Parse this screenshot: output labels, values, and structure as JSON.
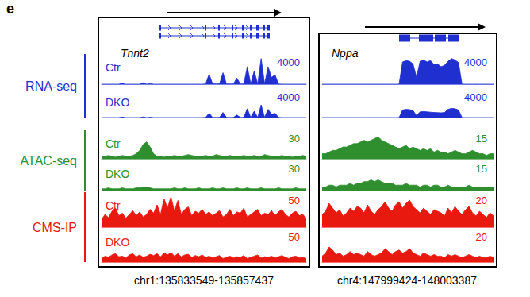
{
  "panel_label": "e",
  "assays": [
    {
      "name": "RNA-seq",
      "color": "#1f2fd0"
    },
    {
      "name": "ATAC-seq",
      "color": "#2f8f2f"
    },
    {
      "name": "CMS-IP",
      "color": "#e8190f"
    }
  ],
  "loci": [
    {
      "gene": "Tnnt2",
      "region": "chr1:135833549-135857437"
    },
    {
      "gene": "Nppa",
      "region": "chr4:147999424-148003387"
    }
  ],
  "chart_data": [
    {
      "type": "area",
      "locus": "Tnnt2",
      "assay": "RNA-seq",
      "title": "Ctr",
      "color": "#1f2fd0",
      "ylim": [
        0,
        4000
      ],
      "yticks": [
        4000
      ],
      "values": [
        0,
        0,
        0,
        0,
        0,
        0,
        150,
        0,
        0,
        0,
        0,
        0,
        200,
        0,
        100,
        0,
        0,
        0,
        0,
        0,
        0,
        0,
        0,
        0,
        0,
        0,
        0,
        0,
        0,
        0,
        30,
        1500,
        60,
        40,
        50,
        1700,
        40,
        30,
        40,
        900,
        30,
        40,
        2600,
        50,
        2000,
        40,
        3800,
        60,
        2600,
        1000,
        1400,
        30,
        0,
        0,
        0,
        0,
        0,
        0,
        0,
        0
      ]
    },
    {
      "type": "area",
      "locus": "Tnnt2",
      "assay": "RNA-seq",
      "title": "DKO",
      "color": "#1f2fd0",
      "ylim": [
        0,
        4000
      ],
      "yticks": [
        4000
      ],
      "values": [
        0,
        0,
        0,
        0,
        0,
        0,
        80,
        0,
        0,
        0,
        0,
        0,
        100,
        0,
        50,
        0,
        0,
        0,
        0,
        0,
        0,
        0,
        0,
        0,
        0,
        0,
        0,
        0,
        0,
        0,
        20,
        700,
        30,
        20,
        30,
        800,
        20,
        20,
        20,
        400,
        20,
        20,
        1400,
        30,
        1000,
        20,
        2000,
        30,
        1300,
        500,
        700,
        20,
        0,
        0,
        0,
        0,
        0,
        0,
        0,
        0
      ]
    },
    {
      "type": "area",
      "locus": "Tnnt2",
      "assay": "ATAC-seq",
      "title": "Ctr",
      "color": "#2f8f2f",
      "ylim": [
        0,
        30
      ],
      "yticks": [
        30
      ],
      "values": [
        3,
        3,
        4,
        3,
        2,
        3,
        4,
        3,
        3,
        4,
        6,
        10,
        17,
        20,
        14,
        6,
        3,
        3,
        2,
        3,
        3,
        4,
        3,
        3,
        4,
        5,
        4,
        3,
        3,
        3,
        4,
        3,
        3,
        5,
        4,
        3,
        3,
        4,
        3,
        3,
        3,
        4,
        3,
        3,
        4,
        3,
        3,
        5,
        4,
        3,
        3,
        3,
        4,
        3,
        3,
        2,
        3,
        3,
        4,
        3
      ]
    },
    {
      "type": "area",
      "locus": "Tnnt2",
      "assay": "ATAC-seq",
      "title": "DKO",
      "color": "#2f8f2f",
      "ylim": [
        0,
        30
      ],
      "yticks": [
        30
      ],
      "values": [
        2,
        2,
        3,
        2,
        2,
        2,
        3,
        2,
        2,
        2,
        3,
        3,
        4,
        4,
        3,
        2,
        2,
        2,
        2,
        2,
        2,
        3,
        2,
        2,
        3,
        2,
        2,
        2,
        3,
        2,
        2,
        2,
        3,
        2,
        2,
        3,
        2,
        2,
        2,
        3,
        2,
        2,
        3,
        2,
        2,
        2,
        3,
        2,
        2,
        2,
        2,
        3,
        2,
        2,
        2,
        2,
        3,
        2,
        2,
        2
      ]
    },
    {
      "type": "area",
      "locus": "Tnnt2",
      "assay": "CMS-IP",
      "title": "Ctr",
      "color": "#e8190f",
      "ylim": [
        0,
        50
      ],
      "yticks": [
        50
      ],
      "values": [
        12,
        20,
        15,
        25,
        30,
        18,
        22,
        14,
        20,
        26,
        18,
        24,
        16,
        20,
        28,
        22,
        35,
        20,
        45,
        30,
        48,
        25,
        42,
        20,
        28,
        32,
        18,
        25,
        22,
        28,
        20,
        24,
        18,
        22,
        26,
        16,
        20,
        28,
        18,
        24,
        22,
        30,
        16,
        20,
        24,
        28,
        18,
        22,
        20,
        26,
        18,
        24,
        28,
        20,
        16,
        22,
        25,
        18,
        20,
        14
      ]
    },
    {
      "type": "area",
      "locus": "Tnnt2",
      "assay": "CMS-IP",
      "title": "DKO",
      "color": "#e8190f",
      "ylim": [
        0,
        50
      ],
      "yticks": [
        50
      ],
      "values": [
        6,
        10,
        8,
        12,
        14,
        9,
        10,
        7,
        12,
        14,
        9,
        12,
        8,
        10,
        13,
        11,
        14,
        9,
        15,
        12,
        16,
        10,
        14,
        9,
        12,
        13,
        8,
        11,
        9,
        12,
        8,
        10,
        7,
        9,
        11,
        6,
        8,
        10,
        7,
        9,
        8,
        11,
        6,
        8,
        10,
        12,
        7,
        9,
        8,
        10,
        7,
        9,
        11,
        8,
        6,
        9,
        10,
        7,
        8,
        6
      ]
    },
    {
      "type": "area",
      "locus": "Nppa",
      "assay": "RNA-seq",
      "color": "#1f2fd0",
      "ylim": [
        0,
        4000
      ],
      "yticks": [
        4000
      ],
      "values": [
        0,
        0,
        0,
        0,
        0,
        0,
        0,
        0,
        0,
        0,
        0,
        0,
        0,
        0,
        0,
        0,
        0,
        0,
        0,
        0,
        0,
        0,
        0,
        3300,
        3500,
        3400,
        3000,
        1000,
        3400,
        3600,
        3300,
        3500,
        2900,
        3000,
        2600,
        2800,
        3400,
        3800,
        3600,
        3200,
        0,
        0,
        0,
        0,
        0,
        0,
        0,
        0,
        0,
        0
      ]
    },
    {
      "type": "area",
      "locus": "Nppa",
      "assay": "RNA-seq",
      "color": "#1f2fd0",
      "ylim": [
        0,
        4000
      ],
      "yticks": [
        4000
      ],
      "values": [
        0,
        0,
        0,
        0,
        0,
        0,
        0,
        0,
        0,
        0,
        0,
        0,
        0,
        0,
        0,
        0,
        0,
        0,
        0,
        0,
        0,
        0,
        0,
        1200,
        1300,
        1250,
        1100,
        300,
        900,
        950,
        900,
        850,
        800,
        780,
        750,
        800,
        1300,
        1450,
        1400,
        1200,
        0,
        0,
        0,
        0,
        0,
        0,
        0,
        0,
        0,
        0
      ]
    },
    {
      "type": "area",
      "locus": "Nppa",
      "assay": "ATAC-seq",
      "color": "#2f8f2f",
      "ylim": [
        0,
        15
      ],
      "yticks": [
        15
      ],
      "values": [
        3,
        3,
        4,
        5,
        5,
        6,
        7,
        7,
        8,
        9,
        9,
        10,
        11,
        10,
        11,
        12,
        13,
        11,
        10,
        9,
        8,
        7,
        6,
        7,
        8,
        6,
        7,
        6,
        5,
        6,
        5,
        6,
        4,
        5,
        4,
        4,
        3,
        4,
        5,
        4,
        3,
        3,
        4,
        5,
        4,
        3,
        3,
        2,
        3,
        3
      ]
    },
    {
      "type": "area",
      "locus": "Nppa",
      "assay": "ATAC-seq",
      "color": "#2f8f2f",
      "ylim": [
        0,
        15
      ],
      "yticks": [
        15
      ],
      "values": [
        2,
        2,
        3,
        3,
        2,
        3,
        3,
        3,
        4,
        3,
        4,
        4,
        5,
        5,
        6,
        5,
        6,
        5,
        4,
        4,
        4,
        3,
        3,
        3,
        4,
        3,
        3,
        3,
        2,
        3,
        3,
        2,
        3,
        3,
        2,
        2,
        3,
        2,
        2,
        2,
        2,
        2,
        3,
        2,
        2,
        2,
        2,
        2,
        2,
        2
      ]
    },
    {
      "type": "area",
      "locus": "Nppa",
      "assay": "CMS-IP",
      "color": "#e8190f",
      "ylim": [
        0,
        20
      ],
      "yticks": [
        20
      ],
      "values": [
        8,
        10,
        15,
        12,
        9,
        11,
        7,
        9,
        12,
        10,
        13,
        12,
        9,
        14,
        10,
        8,
        11,
        13,
        16,
        12,
        10,
        14,
        16,
        12,
        15,
        17,
        13,
        11,
        9,
        12,
        10,
        8,
        11,
        10,
        9,
        7,
        12,
        9,
        13,
        10,
        8,
        11,
        13,
        9,
        7,
        10,
        8,
        6,
        9,
        7
      ]
    },
    {
      "type": "area",
      "locus": "Nppa",
      "assay": "CMS-IP",
      "color": "#e8190f",
      "ylim": [
        0,
        20
      ],
      "yticks": [
        20
      ],
      "values": [
        4,
        6,
        10,
        8,
        5,
        6,
        4,
        5,
        7,
        5,
        6,
        5,
        4,
        7,
        5,
        4,
        5,
        6,
        9,
        7,
        5,
        7,
        8,
        6,
        7,
        9,
        6,
        5,
        4,
        6,
        5,
        4,
        5,
        4,
        4,
        3,
        5,
        4,
        5,
        4,
        3,
        4,
        5,
        4,
        3,
        4,
        3,
        3,
        4,
        3
      ]
    }
  ]
}
